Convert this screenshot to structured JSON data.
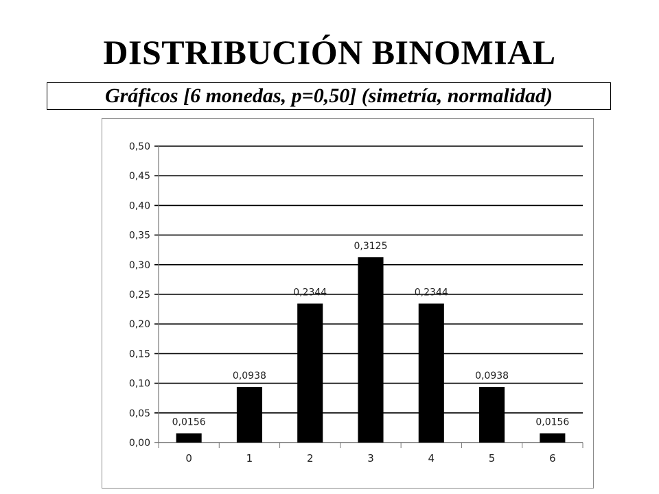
{
  "title": "DISTRIBUCIÓN BINOMIAL",
  "subtitle": "Gráficos [6 monedas, p=0,50] (simetría, normalidad)",
  "chart_data": {
    "type": "bar",
    "categories": [
      "0",
      "1",
      "2",
      "3",
      "4",
      "5",
      "6"
    ],
    "values": [
      0.0156,
      0.0938,
      0.2344,
      0.3125,
      0.2344,
      0.0938,
      0.0156
    ],
    "data_labels": [
      "0,0156",
      "0,0938",
      "0,2344",
      "0,3125",
      "0,2344",
      "0,0938",
      "0,0156"
    ],
    "y_ticks": [
      "0,00",
      "0,05",
      "0,10",
      "0,15",
      "0,20",
      "0,25",
      "0,30",
      "0,35",
      "0,40",
      "0,45",
      "0,50"
    ],
    "ylim": [
      0,
      0.5
    ],
    "grid": true,
    "legend": "none",
    "bar_color": "#000000"
  }
}
